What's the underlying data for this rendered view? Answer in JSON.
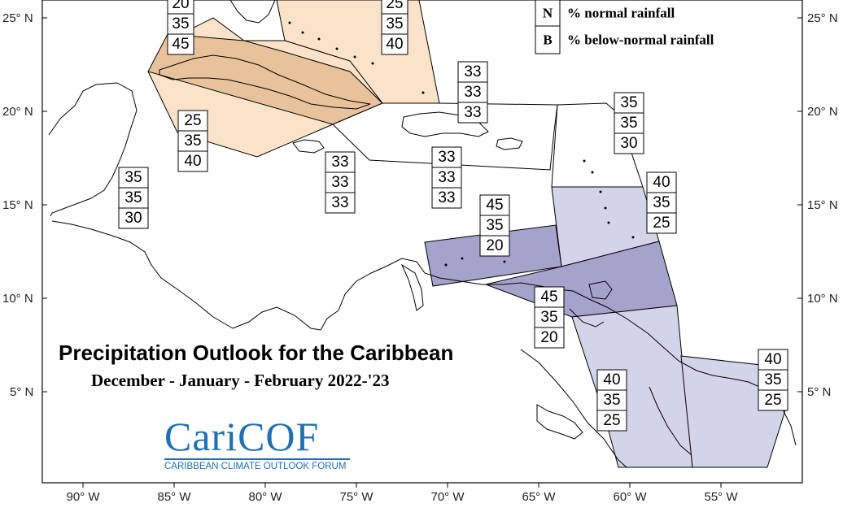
{
  "title": "Precipitation Outlook for the Caribbean",
  "subtitle": "December - January - February 2022-'23",
  "logo": {
    "name": "CariCOF",
    "tagline": "CARIBBEAN CLIMATE OUTLOOK FORUM"
  },
  "legend": [
    {
      "key": "N",
      "text": "% normal rainfall"
    },
    {
      "key": "B",
      "text": "% below-normal rainfall"
    }
  ],
  "lat_labels": [
    "25° N",
    "20° N",
    "15° N",
    "10° N",
    "5° N"
  ],
  "lon_labels": [
    "90° W",
    "85° W",
    "80° W",
    "75° W",
    "70° W",
    "65° W",
    "60° W",
    "55° W"
  ],
  "colors": {
    "above_light": "#fbe3c9",
    "above_medium": "#e8c29b",
    "below_light": "#d3d3ea",
    "below_medium": "#a5a2cc",
    "land_outline": "#000000"
  },
  "probability_boxes": [
    {
      "region": "bahamas-north",
      "values": [
        "20",
        "35",
        "45"
      ]
    },
    {
      "region": "bahamas-east",
      "values": [
        "25",
        "35",
        "40"
      ]
    },
    {
      "region": "northern-leeward",
      "values": [
        "33",
        "33",
        "33"
      ]
    },
    {
      "region": "cuba-jamaica-belt",
      "values": [
        "25",
        "35",
        "40"
      ]
    },
    {
      "region": "jamaica-south",
      "values": [
        "33",
        "33",
        "33"
      ]
    },
    {
      "region": "hispaniola-south",
      "values": [
        "33",
        "33",
        "33"
      ]
    },
    {
      "region": "belize",
      "values": [
        "35",
        "35",
        "30"
      ]
    },
    {
      "region": "leeward-east",
      "values": [
        "35",
        "35",
        "30"
      ]
    },
    {
      "region": "windward-islands",
      "values": [
        "40",
        "35",
        "25"
      ]
    },
    {
      "region": "abc-islands",
      "values": [
        "45",
        "35",
        "20"
      ]
    },
    {
      "region": "trinidad",
      "values": [
        "45",
        "35",
        "20"
      ]
    },
    {
      "region": "guyana",
      "values": [
        "40",
        "35",
        "25"
      ]
    },
    {
      "region": "french-guiana",
      "values": [
        "40",
        "35",
        "25"
      ]
    }
  ]
}
